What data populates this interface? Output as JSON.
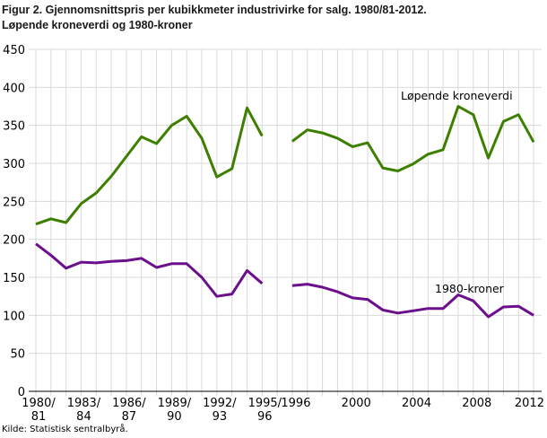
{
  "chart_data": {
    "type": "line",
    "title": "Figur 2. Gjennomsnittspris per kubikkmeter industrivirke for salg. 1980/81-2012.",
    "subtitle": "Løpende kroneverdi og 1980-kroner",
    "source": "Kilde: Statistisk sentralbyrå.",
    "categories": [
      "1980/81",
      "1981/82",
      "1982/83",
      "1983/84",
      "1984/85",
      "1985/86",
      "1986/87",
      "1987/88",
      "1988/89",
      "1989/90",
      "1990/91",
      "1991/92",
      "1992/93",
      "1993/94",
      "1994/95",
      "1995/96",
      "",
      "1996",
      "1997",
      "1998",
      "1999",
      "2000",
      "2001",
      "2002",
      "2003",
      "2004",
      "2005",
      "2006",
      "2007",
      "2008",
      "2009",
      "2010",
      "2011",
      "2012"
    ],
    "x_tick_labels": [
      {
        "category": "1980/81",
        "lines": [
          "1980/",
          "81"
        ]
      },
      {
        "category": "1983/84",
        "lines": [
          "1983/",
          "84"
        ]
      },
      {
        "category": "1986/87",
        "lines": [
          "1986/",
          "87"
        ]
      },
      {
        "category": "1989/90",
        "lines": [
          "1989/",
          "90"
        ]
      },
      {
        "category": "1992/93",
        "lines": [
          "1992/",
          "93"
        ]
      },
      {
        "category": "1995/96",
        "lines": [
          "1995/",
          "96"
        ]
      },
      {
        "category": "1996",
        "lines": [
          "1996"
        ]
      },
      {
        "category": "2000",
        "lines": [
          "2000"
        ]
      },
      {
        "category": "2004",
        "lines": [
          "2004"
        ]
      },
      {
        "category": "2008",
        "lines": [
          "2008"
        ]
      },
      {
        "category": "2012",
        "lines": [
          "2012"
        ]
      }
    ],
    "ylim": [
      0,
      450
    ],
    "yticks": [
      0,
      50,
      100,
      150,
      200,
      250,
      300,
      350,
      400,
      450
    ],
    "grid": true,
    "series": [
      {
        "name": "Løpende kroneverdi",
        "color": "#3d7f00",
        "values": [
          220,
          227,
          222,
          247,
          261,
          283,
          309,
          335,
          326,
          350,
          362,
          333,
          282,
          293,
          373,
          336,
          null,
          329,
          344,
          340,
          333,
          322,
          327,
          294,
          290,
          299,
          312,
          318,
          375,
          364,
          307,
          355,
          364,
          328
        ]
      },
      {
        "name": "1980-kroner",
        "color": "#6b0f8c",
        "values": [
          194,
          179,
          162,
          170,
          169,
          171,
          172,
          175,
          163,
          168,
          168,
          150,
          125,
          128,
          159,
          142,
          null,
          139,
          141,
          137,
          131,
          123,
          121,
          107,
          103,
          106,
          109,
          109,
          127,
          119,
          98,
          111,
          112,
          100
        ]
      }
    ],
    "annotations": [
      {
        "text": "Løpende kroneverdi",
        "series": 0,
        "near": "2007"
      },
      {
        "text": "1980-kroner",
        "series": 1,
        "near": "2007"
      }
    ]
  }
}
